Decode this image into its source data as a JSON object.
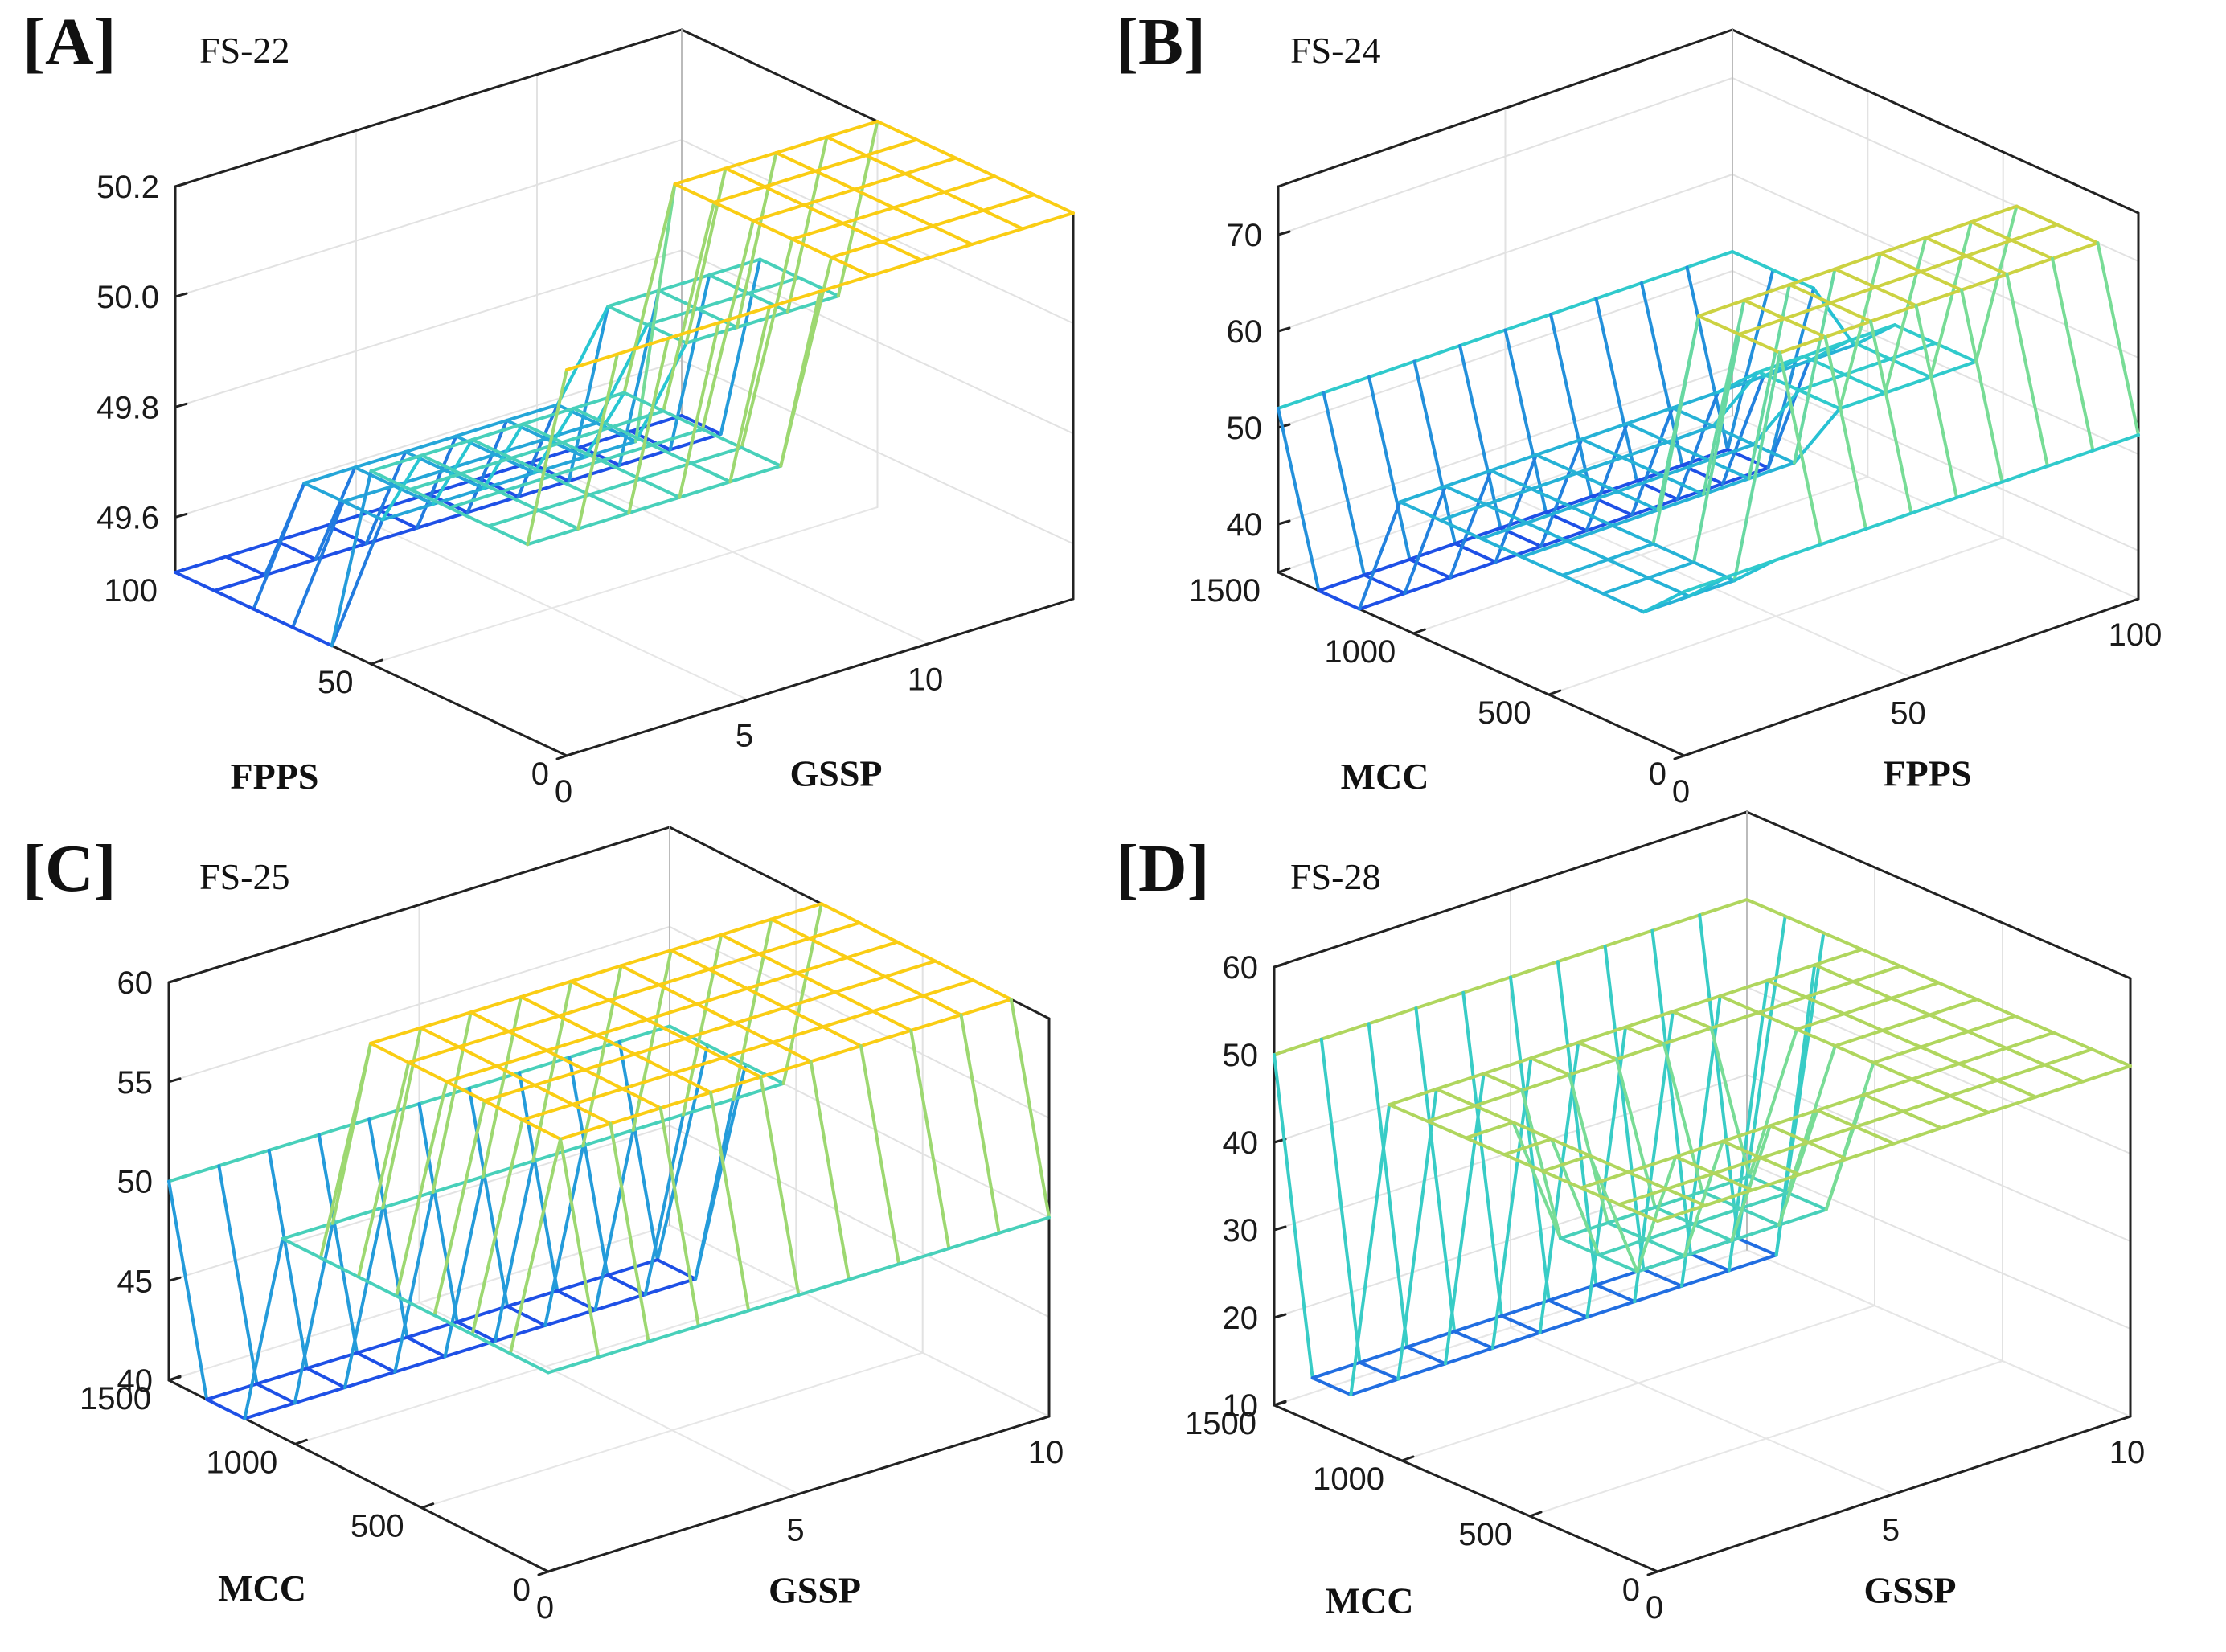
{
  "chart_data": [
    {
      "type": "surface",
      "panel": "[A]",
      "title": "FS-22",
      "xlabel": "GSSP",
      "ylabel": "FPPS",
      "zlabel": "",
      "x_ticks": [
        "0",
        "5",
        "10"
      ],
      "y_ticks": [
        "0",
        "50",
        "100"
      ],
      "z_ticks": [
        "49.6",
        "49.8",
        "50.0",
        "50.2"
      ],
      "xlim": [
        0,
        14
      ],
      "ylim": [
        0,
        100
      ],
      "zlim": [
        49.5,
        50.2
      ],
      "x": [
        0,
        1.4,
        2.8,
        4.2,
        5.6,
        7,
        8.4,
        9.8,
        11.2,
        12.6,
        14
      ],
      "y": [
        0,
        10,
        20,
        30,
        40,
        50,
        60,
        70,
        80,
        90,
        100
      ],
      "z_rows": [
        [
          50.2,
          50.2,
          50.2,
          50.2,
          50.2,
          50.2,
          50.2,
          50.2,
          50.2,
          50.2,
          50.2
        ],
        [
          49.85,
          49.85,
          49.85,
          49.85,
          49.85,
          49.85,
          50.2,
          50.2,
          50.2,
          50.2,
          50.2
        ],
        [
          49.85,
          49.85,
          49.85,
          49.85,
          49.85,
          49.85,
          50.2,
          50.2,
          50.2,
          50.2,
          50.2
        ],
        [
          49.85,
          49.85,
          49.85,
          49.85,
          49.85,
          49.85,
          50.2,
          50.2,
          50.2,
          50.2,
          50.2
        ],
        [
          49.85,
          49.85,
          49.85,
          49.85,
          49.85,
          49.85,
          50.2,
          50.2,
          50.2,
          50.2,
          50.2
        ],
        [
          49.85,
          49.85,
          49.85,
          49.85,
          49.85,
          49.85,
          50.2,
          50.2,
          50.2,
          50.2,
          50.2
        ],
        [
          49.5,
          49.7,
          49.7,
          49.7,
          49.7,
          49.7,
          49.7,
          49.85,
          49.85,
          49.85,
          49.85
        ],
        [
          49.5,
          49.7,
          49.7,
          49.7,
          49.7,
          49.7,
          49.7,
          49.85,
          49.85,
          49.85,
          49.85
        ],
        [
          49.5,
          49.7,
          49.7,
          49.7,
          49.7,
          49.7,
          49.7,
          49.85,
          49.85,
          49.85,
          49.85
        ],
        [
          49.5,
          49.5,
          49.5,
          49.5,
          49.5,
          49.5,
          49.5,
          49.5,
          49.5,
          49.5,
          49.5
        ],
        [
          49.5,
          49.5,
          49.5,
          49.5,
          49.5,
          49.5,
          49.5,
          49.5,
          49.5,
          49.5,
          49.5
        ]
      ]
    },
    {
      "type": "surface",
      "panel": "[B]",
      "title": "FS-24",
      "xlabel": "FPPS",
      "ylabel": "MCC",
      "zlabel": "",
      "x_ticks": [
        "0",
        "50",
        "100"
      ],
      "y_ticks": [
        "0",
        "500",
        "1000",
        "1500"
      ],
      "z_ticks": [
        "40",
        "50",
        "60",
        "70"
      ],
      "xlim": [
        0,
        100
      ],
      "ylim": [
        0,
        1500
      ],
      "zlim": [
        35,
        75
      ],
      "x": [
        0,
        10,
        20,
        30,
        40,
        50,
        60,
        70,
        80,
        90,
        100
      ],
      "y": [
        0,
        150,
        300,
        450,
        600,
        750,
        900,
        1050,
        1200,
        1350,
        1500
      ],
      "z_rows": [
        [
          52,
          52,
          52,
          52,
          52,
          52,
          52,
          52,
          52,
          52,
          52
        ],
        [
          48,
          48,
          48,
          70,
          70,
          70,
          70,
          70,
          70,
          70,
          70
        ],
        [
          48,
          48,
          48,
          70,
          70,
          70,
          70,
          70,
          70,
          70,
          70
        ],
        [
          48,
          48,
          48,
          70,
          70,
          70,
          70,
          70,
          70,
          70,
          70
        ],
        [
          48,
          48,
          48,
          48,
          48,
          48,
          48,
          52,
          52,
          52,
          52
        ],
        [
          48,
          48,
          48,
          48,
          48,
          48,
          48,
          52,
          52,
          52,
          52
        ],
        [
          48,
          48,
          48,
          48,
          48,
          48,
          48,
          52,
          52,
          52,
          52
        ],
        [
          48,
          48,
          48,
          48,
          48,
          48,
          48,
          48,
          48,
          48,
          48
        ],
        [
          35,
          35,
          35,
          35,
          35,
          35,
          35,
          35,
          35,
          35,
          52
        ],
        [
          35,
          35,
          35,
          35,
          35,
          35,
          35,
          35,
          35,
          35,
          52
        ],
        [
          52,
          52,
          52,
          52,
          52,
          52,
          52,
          52,
          52,
          52,
          52
        ]
      ]
    },
    {
      "type": "surface",
      "panel": "[C]",
      "title": "FS-25",
      "xlabel": "GSSP",
      "ylabel": "MCC",
      "zlabel": "",
      "x_ticks": [
        "0",
        "5",
        "10"
      ],
      "y_ticks": [
        "0",
        "500",
        "1000",
        "1500"
      ],
      "z_ticks": [
        "40",
        "45",
        "50",
        "55",
        "60"
      ],
      "xlim": [
        0,
        10
      ],
      "ylim": [
        0,
        1500
      ],
      "zlim": [
        40,
        60
      ],
      "x": [
        0,
        1,
        2,
        3,
        4,
        5,
        6,
        7,
        8,
        9,
        10
      ],
      "y": [
        0,
        150,
        300,
        450,
        600,
        750,
        900,
        1050,
        1200,
        1350,
        1500
      ],
      "z_rows": [
        [
          50,
          50,
          50,
          50,
          50,
          50,
          50,
          50,
          50,
          50,
          50
        ],
        [
          50,
          60,
          60,
          60,
          60,
          60,
          60,
          60,
          60,
          60,
          60
        ],
        [
          50,
          60,
          60,
          60,
          60,
          60,
          60,
          60,
          60,
          60,
          60
        ],
        [
          50,
          60,
          60,
          60,
          60,
          60,
          60,
          60,
          60,
          60,
          60
        ],
        [
          50,
          60,
          60,
          60,
          60,
          60,
          60,
          60,
          60,
          60,
          60
        ],
        [
          50,
          60,
          60,
          60,
          60,
          60,
          60,
          60,
          60,
          60,
          60
        ],
        [
          50,
          60,
          60,
          60,
          60,
          60,
          60,
          60,
          60,
          60,
          60
        ],
        [
          50,
          50,
          50,
          50,
          50,
          50,
          50,
          50,
          50,
          50,
          50
        ],
        [
          40,
          40,
          40,
          40,
          40,
          40,
          40,
          40,
          40,
          40,
          50
        ],
        [
          40,
          40,
          40,
          40,
          40,
          40,
          40,
          40,
          40,
          40,
          50
        ],
        [
          50,
          50,
          50,
          50,
          50,
          50,
          50,
          50,
          50,
          50,
          50
        ]
      ]
    },
    {
      "type": "surface",
      "panel": "[D]",
      "title": "FS-28",
      "xlabel": "GSSP",
      "ylabel": "MCC",
      "zlabel": "",
      "x_ticks": [
        "0",
        "5",
        "10"
      ],
      "y_ticks": [
        "0",
        "500",
        "1000",
        "1500"
      ],
      "z_ticks": [
        "10",
        "20",
        "30",
        "40",
        "50",
        "60"
      ],
      "xlim": [
        0,
        10
      ],
      "ylim": [
        0,
        1500
      ],
      "zlim": [
        10,
        60
      ],
      "x": [
        0,
        1,
        2,
        3,
        4,
        5,
        6,
        7,
        8,
        9,
        10
      ],
      "y": [
        0,
        150,
        300,
        450,
        600,
        750,
        900,
        1050,
        1200,
        1350,
        1500
      ],
      "z_rows": [
        [
          50,
          50,
          50,
          50,
          50,
          50,
          50,
          50,
          50,
          50,
          50
        ],
        [
          50,
          50,
          50,
          50,
          50,
          50,
          50,
          50,
          50,
          50,
          50
        ],
        [
          50,
          50,
          50,
          50,
          50,
          50,
          50,
          50,
          50,
          50,
          50
        ],
        [
          50,
          50,
          35,
          35,
          35,
          35,
          35,
          50,
          50,
          50,
          50
        ],
        [
          50,
          50,
          35,
          35,
          35,
          35,
          35,
          50,
          50,
          50,
          50
        ],
        [
          50,
          50,
          35,
          35,
          35,
          35,
          35,
          50,
          50,
          50,
          50
        ],
        [
          50,
          50,
          50,
          50,
          50,
          50,
          50,
          50,
          50,
          50,
          50
        ],
        [
          50,
          50,
          50,
          50,
          50,
          50,
          50,
          50,
          50,
          50,
          50
        ],
        [
          15,
          15,
          15,
          15,
          15,
          15,
          15,
          15,
          15,
          15,
          50
        ],
        [
          15,
          15,
          15,
          15,
          15,
          15,
          15,
          15,
          15,
          15,
          50
        ],
        [
          50,
          50,
          50,
          50,
          50,
          50,
          50,
          50,
          50,
          50,
          50
        ]
      ]
    }
  ]
}
